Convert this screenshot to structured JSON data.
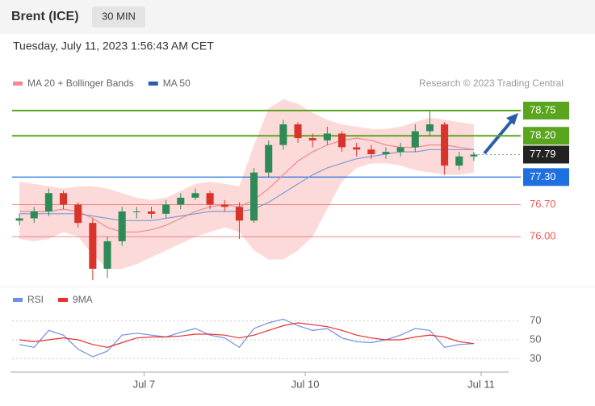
{
  "chart_data": {
    "type": "candlestick",
    "title": "Brent (ICE)",
    "timeframe": "30 MIN",
    "subtitle": "Tuesday, July 11, 2023 1:56:43 AM CET",
    "credit": "Research © 2023 Trading Central",
    "legend": [
      {
        "name": "MA 20 + Bollinger Bands",
        "color": "#f08a8a"
      },
      {
        "name": "MA 50",
        "color": "#2a5fa8"
      }
    ],
    "open": [
      76.35,
      76.4,
      76.55,
      76.95,
      76.7,
      76.3,
      75.3,
      75.9,
      76.55,
      76.55,
      76.5,
      76.7,
      76.85,
      76.95,
      76.7,
      76.65,
      76.35,
      77.4,
      78.0,
      78.45,
      78.15,
      78.1,
      78.25,
      77.95,
      77.9,
      77.8,
      77.85,
      77.95,
      78.3,
      78.45,
      77.55,
      77.75
    ],
    "high": [
      76.5,
      76.65,
      77.05,
      77.0,
      76.75,
      76.4,
      76.0,
      76.65,
      76.65,
      76.65,
      76.8,
      76.95,
      77.05,
      77.0,
      76.8,
      76.75,
      77.5,
      78.1,
      78.55,
      78.5,
      78.25,
      78.4,
      78.3,
      78.05,
      78.0,
      77.95,
      78.05,
      78.45,
      78.75,
      78.5,
      77.85,
      77.85
    ],
    "low": [
      76.25,
      76.3,
      76.45,
      76.6,
      76.2,
      75.05,
      75.1,
      75.8,
      76.4,
      76.4,
      76.4,
      76.6,
      76.8,
      76.6,
      76.55,
      75.95,
      76.3,
      77.3,
      77.9,
      78.05,
      77.95,
      78.0,
      77.85,
      77.75,
      77.7,
      77.7,
      77.75,
      77.85,
      78.2,
      77.35,
      77.45,
      77.65
    ],
    "close": [
      76.4,
      76.55,
      76.95,
      76.7,
      76.3,
      75.3,
      75.9,
      76.55,
      76.55,
      76.5,
      76.7,
      76.85,
      76.95,
      76.7,
      76.65,
      76.35,
      77.4,
      78.0,
      78.45,
      78.15,
      78.1,
      78.25,
      77.95,
      77.9,
      77.8,
      77.85,
      77.95,
      78.3,
      78.45,
      77.55,
      77.75,
      77.79
    ],
    "ma20": [
      76.55,
      76.55,
      76.55,
      76.6,
      76.55,
      76.4,
      76.2,
      76.1,
      76.1,
      76.15,
      76.25,
      76.4,
      76.55,
      76.65,
      76.7,
      76.65,
      76.8,
      77.05,
      77.35,
      77.65,
      77.85,
      78.0,
      78.1,
      78.15,
      78.1,
      78.0,
      77.95,
      77.95,
      78.0,
      78.0,
      77.95,
      77.9
    ],
    "ma50": [
      76.5,
      76.5,
      76.5,
      76.5,
      76.5,
      76.45,
      76.4,
      76.35,
      76.35,
      76.35,
      76.4,
      76.45,
      76.5,
      76.55,
      76.55,
      76.55,
      76.6,
      76.75,
      76.95,
      77.15,
      77.35,
      77.5,
      77.6,
      77.7,
      77.75,
      77.8,
      77.85,
      77.85,
      77.9,
      77.9,
      77.9,
      77.9
    ],
    "bollinger_upper": [
      77.2,
      77.15,
      77.1,
      77.05,
      77.1,
      77.1,
      77.05,
      76.95,
      76.85,
      76.8,
      76.85,
      77.0,
      77.15,
      77.2,
      77.15,
      77.1,
      78.0,
      78.8,
      79.0,
      78.9,
      78.7,
      78.55,
      78.45,
      78.4,
      78.35,
      78.35,
      78.4,
      78.5,
      78.6,
      78.55,
      78.5,
      78.45
    ],
    "bollinger_lower": [
      75.95,
      75.9,
      75.95,
      76.1,
      76.0,
      75.6,
      75.3,
      75.3,
      75.4,
      75.55,
      75.7,
      75.85,
      76.0,
      76.1,
      76.2,
      76.1,
      75.7,
      75.5,
      75.5,
      75.7,
      76.0,
      76.6,
      77.2,
      77.5,
      77.6,
      77.6,
      77.55,
      77.45,
      77.4,
      77.35,
      77.35,
      77.4
    ],
    "ylim": [
      75.0,
      79.05
    ],
    "xlim": [
      0,
      32
    ],
    "xticks": [
      {
        "value": 9,
        "label": "Jul 7"
      },
      {
        "value": 20,
        "label": "Jul 10"
      },
      {
        "value": 32,
        "label": "Jul 11"
      }
    ],
    "levels": [
      {
        "value": 78.75,
        "label": "78.75",
        "color": "#5aa51e",
        "style": "box"
      },
      {
        "value": 78.2,
        "label": "78.20",
        "color": "#5aa51e",
        "style": "box"
      },
      {
        "value": 77.79,
        "label": "77.79",
        "color": "#222222",
        "style": "current"
      },
      {
        "value": 77.3,
        "label": "77.30",
        "color": "#1e6fe0",
        "style": "box"
      },
      {
        "value": 76.7,
        "label": "76.70",
        "color": "#f05a5a",
        "style": "text"
      },
      {
        "value": 76,
        "label": "76.00",
        "color": "#f05a5a",
        "style": "text"
      }
    ],
    "rsi": {
      "ylim": [
        20,
        80
      ],
      "yticks": [
        70,
        50,
        30
      ],
      "series": [
        {
          "name": "RSI",
          "color": "#6f8ee6",
          "values": [
            45,
            42,
            60,
            55,
            40,
            32,
            38,
            55,
            57,
            55,
            53,
            58,
            62,
            55,
            52,
            42,
            62,
            68,
            72,
            65,
            60,
            62,
            52,
            48,
            47,
            50,
            55,
            62,
            60,
            42,
            45,
            46
          ]
        },
        {
          "name": "9MA",
          "color": "#e83030",
          "values": [
            50,
            48,
            50,
            52,
            50,
            45,
            42,
            47,
            52,
            53,
            53,
            54,
            56,
            56,
            55,
            52,
            55,
            60,
            65,
            68,
            66,
            64,
            60,
            55,
            52,
            50,
            50,
            53,
            55,
            53,
            48,
            46
          ]
        }
      ]
    }
  }
}
